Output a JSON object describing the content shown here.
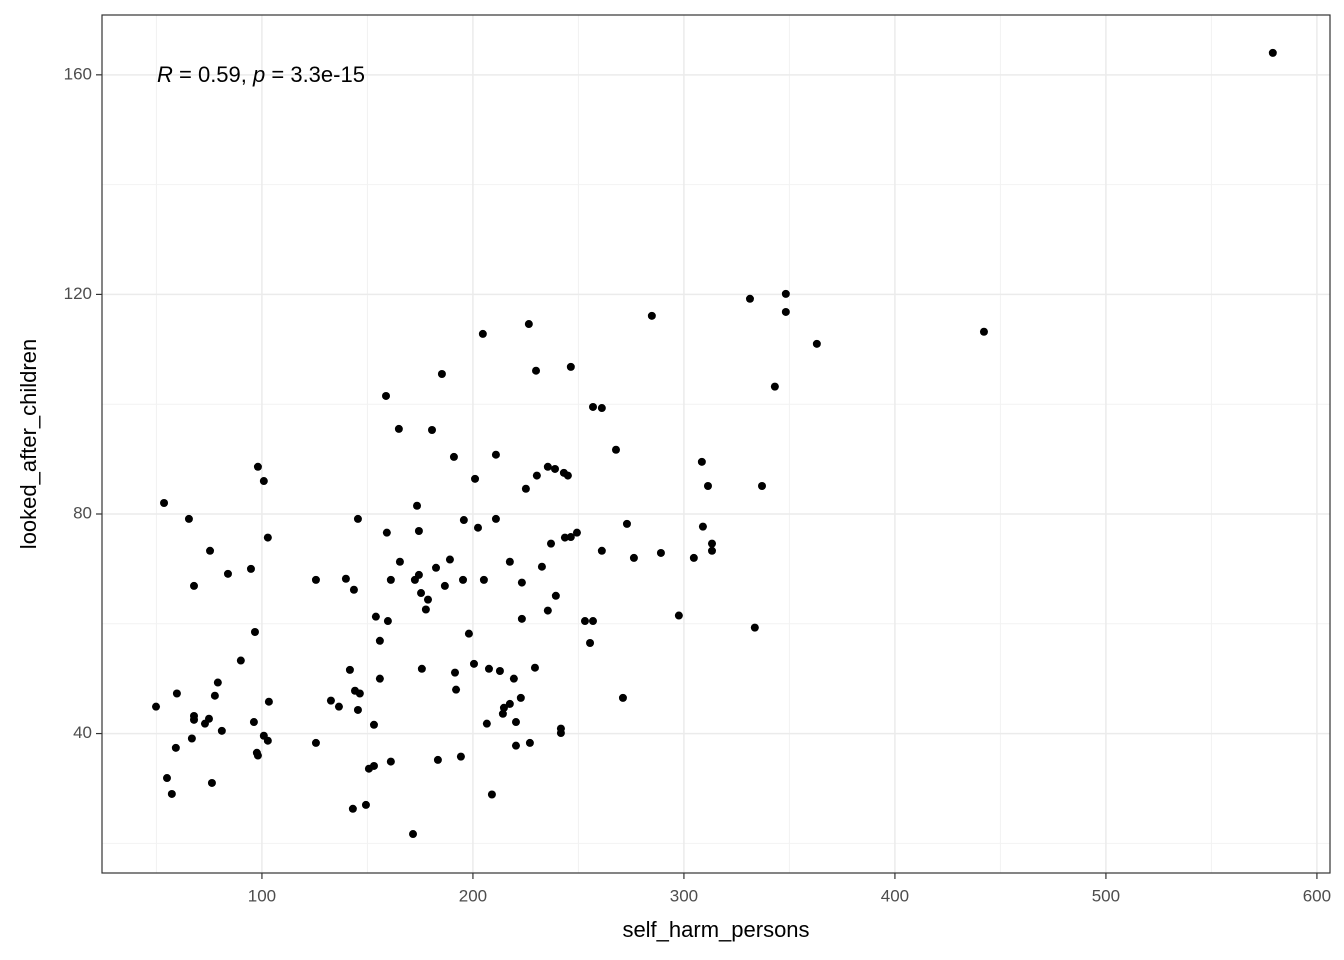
{
  "chart_data": {
    "type": "scatter",
    "xlabel": "self_harm_persons",
    "ylabel": "looked_after_children",
    "annotation": [
      "R",
      " = 0.59, ",
      "p",
      " = 3.3e-15"
    ],
    "color": "#000000",
    "xlim": [
      24.2,
      606.2
    ],
    "ylim": [
      14.6,
      170.9
    ],
    "xticks": [
      100,
      200,
      300,
      400,
      500,
      600
    ],
    "yticks": [
      40,
      80,
      120,
      160
    ],
    "x_minor_grid": [
      50,
      150,
      250,
      350,
      450,
      550
    ],
    "y_minor_grid": [
      20,
      60,
      100,
      140
    ],
    "grid": true,
    "x": [
      579.1,
      442.2,
      348.3,
      331.3,
      348.3,
      363.0,
      284.8,
      343.1,
      337.0,
      333.6,
      308.5,
      311.4,
      309.0,
      313.3,
      313.3,
      304.7,
      297.6,
      289.1,
      276.3,
      273.0,
      271.1,
      267.8,
      261.1,
      261.1,
      256.9,
      256.9,
      255.5,
      253.1,
      249.3,
      246.4,
      243.6,
      246.4,
      245.0,
      243.1,
      238.9,
      235.5,
      230.3,
      225.1,
      226.5,
      229.9,
      237.0,
      239.3,
      235.5,
      232.7,
      223.2,
      223.2,
      217.5,
      229.4,
      219.4,
      217.5,
      222.7,
      214.7,
      214.2,
      220.4,
      220.4,
      227.0,
      241.7,
      241.7,
      210.9,
      204.7,
      210.9,
      202.4,
      201.0,
      195.7,
      191.0,
      185.3,
      180.6,
      164.9,
      158.8,
      173.5,
      174.4,
      159.2,
      165.4,
      174.4,
      172.5,
      161.1,
      182.5,
      189.1,
      195.3,
      205.2,
      186.7,
      175.4,
      178.7,
      177.7,
      159.7,
      154.0,
      155.9,
      198.1,
      200.5,
      207.6,
      212.8,
      191.5,
      175.8,
      192.0,
      155.9,
      141.7,
      144.1,
      146.4,
      145.5,
      132.7,
      136.5,
      153.1,
      139.8,
      143.6,
      125.6,
      145.5,
      206.6,
      194.3,
      183.4,
      161.1,
      153.1,
      150.7,
      125.6,
      143.1,
      149.3,
      171.6,
      209.0,
      102.8,
      100.9,
      98.1,
      94.8,
      83.9,
      75.4,
      67.8,
      65.4,
      53.6,
      96.7,
      90.0,
      103.3,
      96.2,
      100.9,
      102.8,
      98.1,
      97.6,
      81.0,
      79.1,
      77.7,
      74.9,
      73.0,
      67.8,
      67.8,
      66.8,
      59.7,
      59.2,
      49.8,
      55.0,
      57.3,
      76.3
    ],
    "y": [
      164.0,
      113.2,
      120.1,
      119.2,
      116.8,
      111.0,
      116.1,
      103.2,
      85.1,
      59.3,
      89.5,
      85.1,
      77.7,
      74.6,
      73.3,
      72.0,
      61.5,
      72.9,
      72.0,
      78.2,
      46.5,
      91.7,
      73.3,
      99.3,
      99.5,
      60.5,
      56.5,
      60.5,
      76.6,
      75.8,
      75.7,
      106.8,
      87.0,
      87.5,
      88.2,
      88.6,
      87.0,
      84.6,
      114.6,
      106.1,
      74.6,
      65.1,
      62.4,
      70.4,
      67.5,
      60.9,
      71.3,
      52.0,
      50.0,
      45.4,
      46.5,
      44.7,
      43.6,
      42.1,
      37.8,
      38.3,
      40.9,
      40.1,
      90.8,
      112.8,
      79.1,
      77.5,
      86.4,
      78.9,
      90.4,
      105.5,
      95.3,
      95.5,
      101.5,
      81.5,
      76.9,
      76.6,
      71.3,
      68.9,
      68.0,
      68.0,
      70.2,
      71.7,
      68.0,
      68.0,
      66.9,
      65.6,
      64.4,
      62.6,
      60.5,
      61.3,
      56.9,
      58.2,
      52.7,
      51.8,
      51.4,
      51.1,
      51.8,
      48.0,
      50.0,
      51.6,
      47.8,
      47.3,
      44.3,
      46.0,
      44.9,
      41.6,
      68.2,
      66.2,
      68.0,
      79.1,
      41.8,
      35.8,
      35.2,
      34.9,
      34.1,
      33.6,
      38.3,
      26.3,
      27.0,
      21.7,
      28.9,
      75.7,
      86.0,
      88.6,
      70.0,
      69.1,
      73.3,
      66.9,
      79.1,
      82.0,
      58.5,
      53.3,
      45.8,
      42.1,
      39.6,
      38.7,
      36.0,
      36.5,
      40.5,
      49.3,
      46.9,
      42.7,
      41.8,
      43.2,
      42.5,
      39.1,
      47.3,
      37.4,
      44.9,
      31.9,
      29.0,
      31.0
    ]
  }
}
